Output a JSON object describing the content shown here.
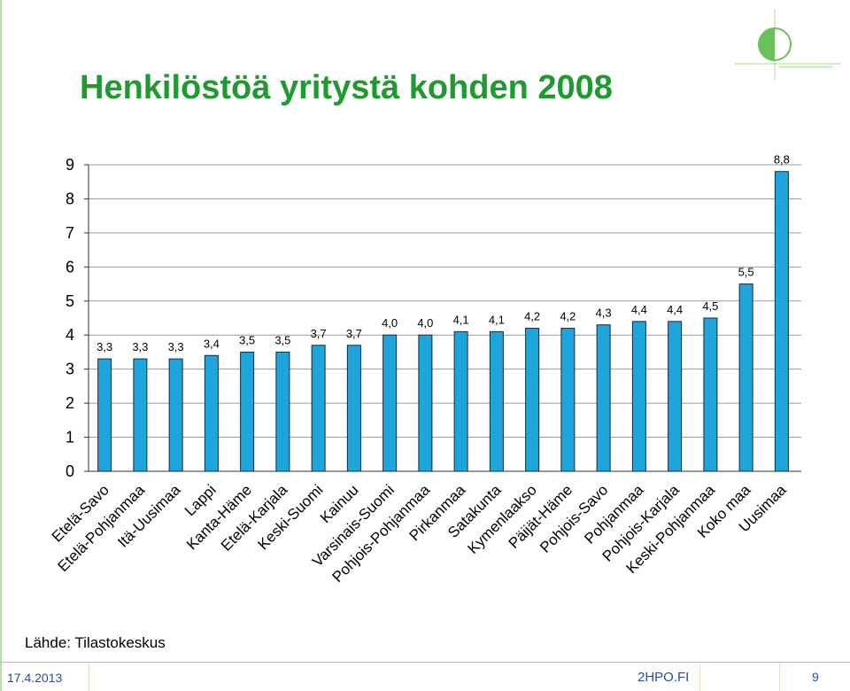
{
  "slide": {
    "title": "Henkilöstöä yritystä kohden 2008",
    "source": "Lähde: Tilastokeskus",
    "date": "17.4.2013",
    "site": "2HPO.FI",
    "page_number": "9"
  },
  "colors": {
    "bar": "#1ea6dc",
    "bar_stroke": "#1a2a3a",
    "title": "#1f9a2f",
    "accent": "#7cc66b"
  },
  "chart_data": {
    "type": "bar",
    "title": "Henkilöstöä yritystä kohden 2008",
    "xlabel": "",
    "ylabel": "",
    "ylim": [
      0,
      9
    ],
    "yticks": [
      0,
      1,
      2,
      3,
      4,
      5,
      6,
      7,
      8,
      9
    ],
    "grid": true,
    "categories": [
      "Etelä-Savo",
      "Etelä-Pohjanmaa",
      "Itä-Uusimaa",
      "Lappi",
      "Kanta-Häme",
      "Etelä-Karjala",
      "Keski-Suomi",
      "Kainuu",
      "Varsinais-Suomi",
      "Pohjois-Pohjanmaa",
      "Pirkanmaa",
      "Satakunta",
      "Kymenlaakso",
      "Päijät-Häme",
      "Pohjois-Savo",
      "Pohjanmaa",
      "Pohjois-Karjala",
      "Keski-Pohjanmaa",
      "Koko maa",
      "Uusimaa"
    ],
    "values": [
      3.3,
      3.3,
      3.3,
      3.4,
      3.5,
      3.5,
      3.7,
      3.7,
      4.0,
      4.0,
      4.1,
      4.1,
      4.2,
      4.2,
      4.3,
      4.4,
      4.4,
      4.5,
      5.5,
      8.8
    ],
    "data_labels": [
      "3,3",
      "3,3",
      "3,3",
      "3,4",
      "3,5",
      "3,5",
      "3,7",
      "3,7",
      "4,0",
      "4,0",
      "4,1",
      "4,1",
      "4,2",
      "4,2",
      "4,3",
      "4,4",
      "4,4",
      "4,5",
      "5,5",
      "8,8"
    ]
  }
}
